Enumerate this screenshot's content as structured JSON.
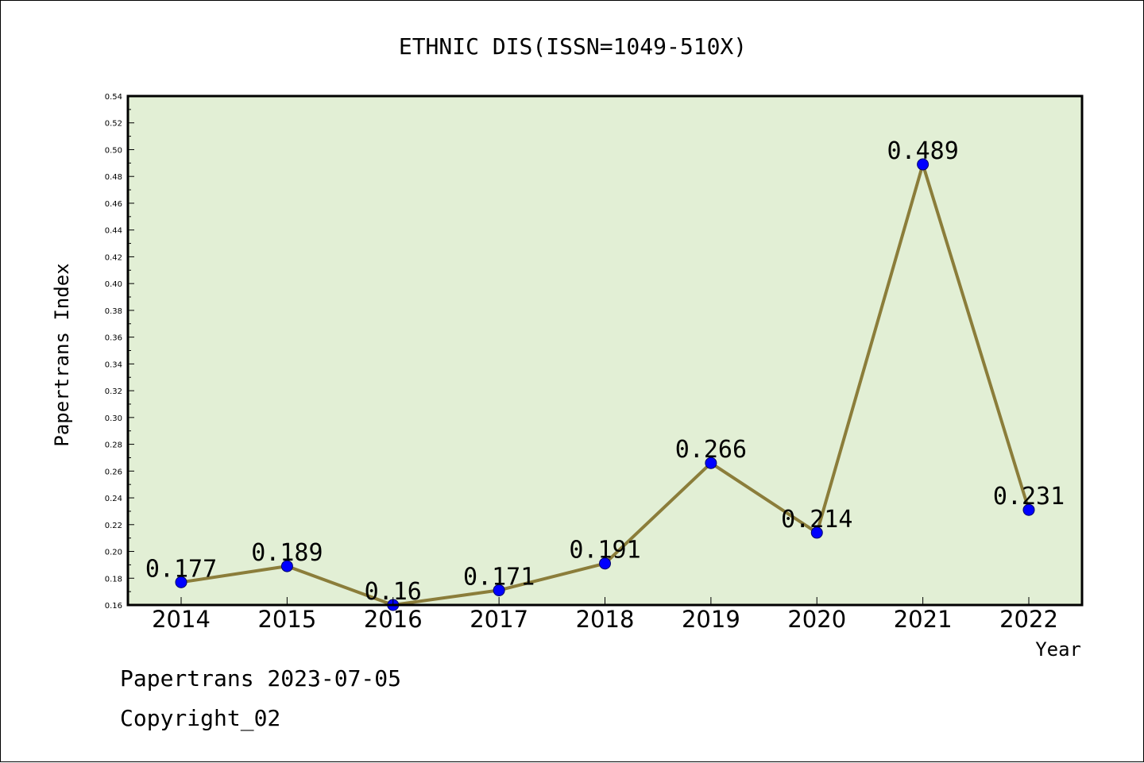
{
  "chart_data": {
    "type": "line",
    "title": "ETHNIC DIS(ISSN=1049-510X)",
    "xlabel": "Year",
    "ylabel": "Papertrans Index",
    "categories": [
      "2014",
      "2015",
      "2016",
      "2017",
      "2018",
      "2019",
      "2020",
      "2021",
      "2022"
    ],
    "values": [
      0.177,
      0.189,
      0.16,
      0.171,
      0.191,
      0.266,
      0.214,
      0.489,
      0.231
    ],
    "data_labels": [
      "0.177",
      "0.189",
      "0.16",
      "0.171",
      "0.191",
      "0.266",
      "0.214",
      "0.489",
      "0.231"
    ],
    "ylim": [
      0.16,
      0.54
    ],
    "yticks": [
      "0.16",
      "0.18",
      "0.20",
      "0.22",
      "0.24",
      "0.26",
      "0.28",
      "0.30",
      "0.32",
      "0.34",
      "0.36",
      "0.38",
      "0.40",
      "0.42",
      "0.44",
      "0.46",
      "0.48",
      "0.50",
      "0.52",
      "0.54"
    ],
    "grid": false,
    "colors": {
      "plot_background": "#e2efd5",
      "line": "#8b7d3a",
      "marker": "#0000ff"
    }
  },
  "footer": {
    "line1": "Papertrans 2023-07-05",
    "line2": "Copyright_02"
  }
}
